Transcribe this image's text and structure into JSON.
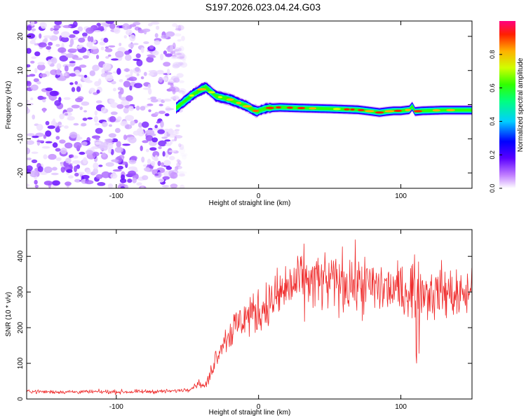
{
  "title": "S197.2026.023.04.24.G03",
  "chart_data": [
    {
      "type": "heatmap",
      "xlabel": "Height of straight line (km)",
      "ylabel": "Frequency (Hz)",
      "xlim": [
        -163,
        150
      ],
      "ylim": [
        -24.5,
        24.5
      ],
      "xticks": [
        -100,
        0,
        100
      ],
      "yticks": [
        -20,
        -10,
        0,
        10,
        20
      ],
      "colorbar": {
        "label": "Normalized spectral amplitude",
        "range": [
          0,
          1
        ],
        "ticks": [
          0.0,
          0.2,
          0.4,
          0.6,
          0.8
        ]
      },
      "noise_region_x": [
        -163,
        -55
      ],
      "signal_track": {
        "x": [
          -58,
          -52,
          -46,
          -40,
          -37,
          -34,
          -30,
          -25,
          -20,
          -14,
          -8,
          -4,
          -1,
          2,
          6,
          15,
          30,
          50,
          70,
          80,
          85,
          90,
          95,
          100,
          106,
          108,
          110,
          115,
          130,
          150
        ],
        "frequency": [
          -1.0,
          1.0,
          3.0,
          4.5,
          5.0,
          4.0,
          2.5,
          2.0,
          1.5,
          0.5,
          -0.5,
          -1.5,
          -2.0,
          -1.5,
          -1.0,
          -0.8,
          -1.0,
          -1.2,
          -1.5,
          -2.0,
          -2.3,
          -2.0,
          -1.8,
          -1.8,
          -1.5,
          -0.5,
          -2.0,
          -1.8,
          -1.6,
          -1.6
        ]
      }
    },
    {
      "type": "line",
      "xlabel": "Height of straight line (km)",
      "ylabel": "SNR (10 * v/v)",
      "xlim": [
        -163,
        150
      ],
      "ylim": [
        0,
        475
      ],
      "xticks": [
        -100,
        0,
        100
      ],
      "yticks": [
        0,
        100,
        200,
        300,
        400
      ],
      "color": "#ef2b2b",
      "x": [
        -163,
        -150,
        -120,
        -90,
        -60,
        -48,
        -42,
        -38,
        -35,
        -30,
        -25,
        -20,
        -10,
        0,
        10,
        20,
        30,
        40,
        50,
        60,
        70,
        80,
        90,
        100,
        110,
        120,
        130,
        140,
        150
      ],
      "mean": [
        22,
        20,
        20,
        20,
        22,
        28,
        45,
        35,
        55,
        120,
        160,
        185,
        230,
        245,
        275,
        310,
        330,
        330,
        325,
        330,
        320,
        315,
        310,
        300,
        310,
        300,
        300,
        290,
        300
      ]
    }
  ]
}
